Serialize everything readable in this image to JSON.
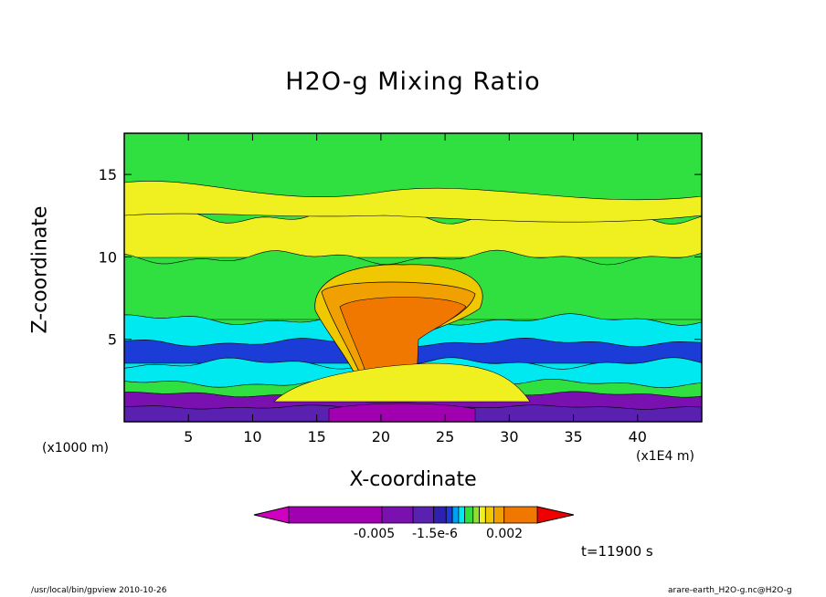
{
  "chart_data": {
    "type": "heatmap",
    "title": "H2O-g Mixing Ratio",
    "xlabel": "X-coordinate",
    "ylabel": "Z-coordinate",
    "x_unit_left": "(x1000 m)",
    "x_unit_right": "(x1E4 m)",
    "xlim": [
      0,
      45
    ],
    "ylim": [
      0,
      17.5
    ],
    "xticks": [
      5,
      10,
      15,
      20,
      25,
      30,
      35,
      40
    ],
    "yticks": [
      5,
      10,
      15
    ],
    "colorbar": {
      "colors": [
        "#d000c0",
        "#a000b0",
        "#7a10b0",
        "#5a20b0",
        "#3020b0",
        "#1c3cd8",
        "#00a0f0",
        "#00e8f0",
        "#30e040",
        "#90e030",
        "#f0f020",
        "#f0c800",
        "#f0a000",
        "#f07800",
        "#f00000"
      ],
      "tick_labels": [
        "-0.005",
        "-1.5e-6",
        "0.002"
      ]
    },
    "time_label": "t=11900 s",
    "footer_left": "/usr/local/bin/gpview  2010-10-26",
    "footer_right": "arare-earth_H2O-g.nc@H2O-g"
  }
}
